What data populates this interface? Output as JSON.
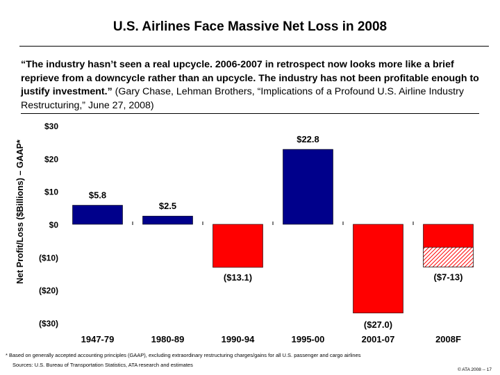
{
  "slide": {
    "title": "U.S. Airlines Face Massive Net Loss in 2008",
    "quote_bold": "“The industry hasn’t seen a real upcycle. 2006-2007 in retrospect now looks more like a brief reprieve from a downcycle rather than an upcycle. The industry has not been profitable enough to justify investment.”",
    "quote_attribution": " (Gary Chase, Lehman Brothers, “Implications of a Profound U.S. Airline Industry Restructuring,” June 27, 2008)",
    "footnote": "* Based on generally accepted accounting principles (GAAP), excluding extraordinary restructuring charges/gains for all U.S. passenger and cargo airlines",
    "source": "Sources: U.S. Bureau of Transportation Statistics, ATA research and estimates",
    "copyright": "© ATA 2008 -- 17"
  },
  "chart_data": {
    "type": "bar",
    "ylabel": "Net Profit/Loss ($Billions) – GAAP*",
    "ylim": [
      -30,
      30
    ],
    "yticks": [
      30,
      20,
      10,
      0,
      -10,
      -20,
      -30
    ],
    "ytick_labels": [
      "$30",
      "$20",
      "$10",
      "$0",
      "($10)",
      "($20)",
      "($30)"
    ],
    "categories": [
      "1947-79",
      "1980-89",
      "1990-94",
      "1995-00",
      "2001-07",
      "2008F"
    ],
    "values": [
      5.8,
      2.5,
      -13.1,
      22.8,
      -27.0,
      -13
    ],
    "value_labels": [
      "$5.8",
      "$2.5",
      "($13.1)",
      "$22.8",
      "($27.0)",
      "($7-13)"
    ],
    "range_low": [
      null,
      null,
      null,
      null,
      null,
      -7
    ],
    "colors": {
      "positive": "#00008b",
      "negative": "#ff0000",
      "hatch": "#ff0000"
    },
    "grid": false
  }
}
